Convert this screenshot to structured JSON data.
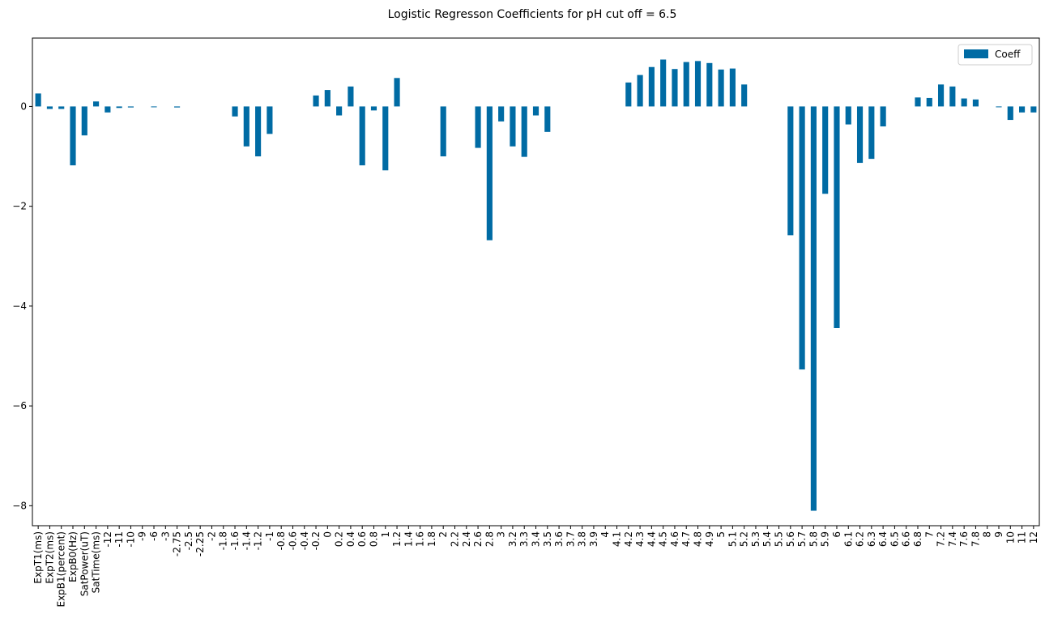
{
  "chart_data": {
    "type": "bar",
    "title": "Logistic Regresson Coefficients for pH cut off = 6.5",
    "xlabel": "",
    "ylabel": "",
    "ylim": [
      -8.4,
      1.37
    ],
    "yticks": [
      0,
      -2,
      -4,
      -6,
      -8
    ],
    "ytick_labels": [
      "0",
      "−2",
      "−4",
      "−6",
      "−8"
    ],
    "legend_position": "top-right",
    "grid": false,
    "bar_color": "#006BA4",
    "categories": [
      "ExpT1(ms)",
      "ExpT2(ms)",
      "ExpB1(percent)",
      "ExpB0(Hz)",
      "SatPower(uT)",
      "SatTime(ms)",
      "-12",
      "-11",
      "-10",
      "-9",
      "-6",
      "-3",
      "-2.75",
      "-2.5",
      "-2.25",
      "-2",
      "-1.8",
      "-1.6",
      "-1.4",
      "-1.2",
      "-1",
      "-0.8",
      "-0.6",
      "-0.4",
      "-0.2",
      "0",
      "0.2",
      "0.4",
      "0.6",
      "0.8",
      "1",
      "1.2",
      "1.4",
      "1.6",
      "1.8",
      "2",
      "2.2",
      "2.4",
      "2.6",
      "2.8",
      "3",
      "3.2",
      "3.3",
      "3.4",
      "3.5",
      "3.6",
      "3.7",
      "3.8",
      "3.9",
      "4",
      "4.1",
      "4.2",
      "4.3",
      "4.4",
      "4.5",
      "4.6",
      "4.7",
      "4.8",
      "4.9",
      "5",
      "5.1",
      "5.2",
      "5.3",
      "5.4",
      "5.5",
      "5.6",
      "5.7",
      "5.8",
      "5.9",
      "6",
      "6.1",
      "6.2",
      "6.3",
      "6.4",
      "6.5",
      "6.6",
      "6.8",
      "7",
      "7.2",
      "7.4",
      "7.6",
      "7.8",
      "8",
      "9",
      "10",
      "11",
      "12"
    ],
    "series": [
      {
        "name": "Coeff",
        "values": [
          0.26,
          -0.05,
          -0.05,
          -1.18,
          -0.58,
          0.1,
          -0.12,
          -0.03,
          -0.02,
          0,
          -0.01,
          0,
          -0.02,
          0,
          0,
          0,
          0,
          -0.2,
          -0.8,
          -1.0,
          -0.55,
          0,
          0,
          0,
          0.22,
          0.33,
          -0.18,
          0.4,
          -1.18,
          -0.08,
          -1.28,
          0.57,
          0,
          0,
          0,
          -1.0,
          0,
          0,
          -0.83,
          -2.68,
          -0.3,
          -0.8,
          -1.01,
          -0.18,
          -0.51,
          0,
          0,
          0,
          0,
          0,
          0,
          0.48,
          0.63,
          0.79,
          0.94,
          0.75,
          0.89,
          0.91,
          0.87,
          0.74,
          0.76,
          0.44,
          0,
          0,
          0,
          -2.58,
          -5.27,
          -8.1,
          -1.75,
          -4.44,
          -0.36,
          -1.13,
          -1.05,
          -0.4,
          0,
          0,
          0.18,
          0.17,
          0.44,
          0.4,
          0.16,
          0.14,
          0,
          -0.01,
          -0.27,
          -0.12,
          -0.12
        ]
      }
    ]
  }
}
